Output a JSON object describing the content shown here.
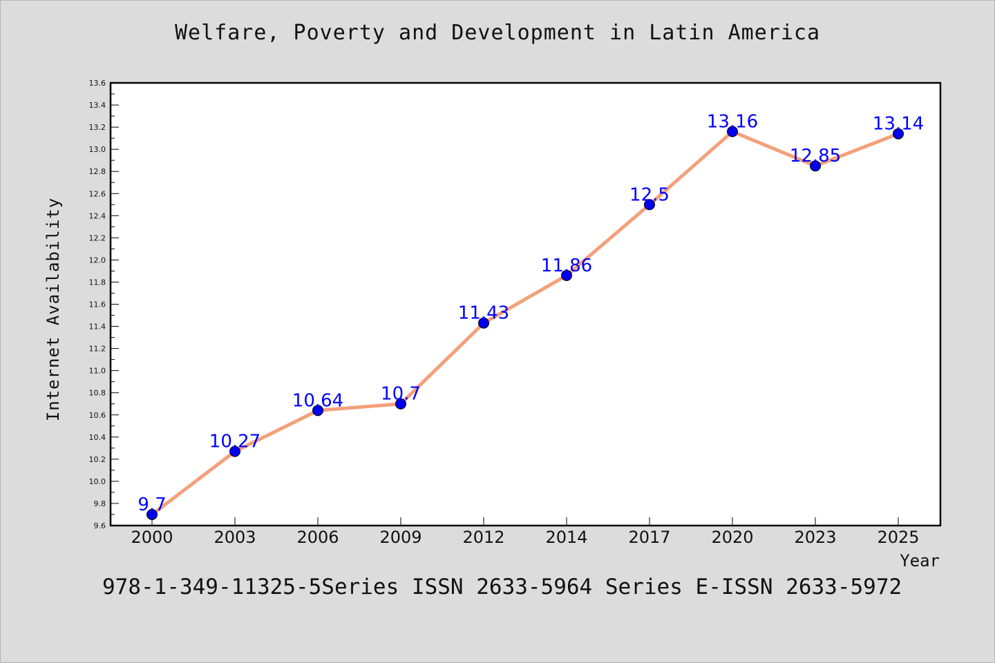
{
  "title": "Welfare, Poverty and Development in Latin America",
  "footnote": "978-1-349-11325-5Series ISSN 2633-5964 Series E-ISSN 2633-5972",
  "chart_data": {
    "type": "line",
    "title": "Welfare, Poverty and Development in Latin America",
    "xlabel": "Year",
    "ylabel": "Internet Availability",
    "categories": [
      "2000",
      "2003",
      "2006",
      "2009",
      "2012",
      "2014",
      "2017",
      "2020",
      "2023",
      "2025"
    ],
    "series": [
      {
        "values": [
          9.7,
          10.27,
          10.64,
          10.7,
          11.43,
          11.86,
          12.5,
          13.16,
          12.85,
          13.14
        ],
        "line_color": "#f4a07a",
        "marker_color": "#0000ee"
      }
    ],
    "data_labels": [
      "9.7",
      "10.27",
      "10.64",
      "10.7",
      "11.43",
      "11.86",
      "12.5",
      "13.16",
      "12.85",
      "13.14"
    ],
    "ylim": [
      9.6,
      13.6
    ],
    "yticks": [
      "9.6",
      "9.8",
      "10.0",
      "10.2",
      "10.4",
      "10.6",
      "10.8",
      "11.0",
      "11.2",
      "11.4",
      "11.6",
      "11.8",
      "12.0",
      "12.2",
      "12.4",
      "12.6",
      "12.8",
      "13.0",
      "13.2",
      "13.4",
      "13.6"
    ],
    "grid": false,
    "legend": "none",
    "colors": {
      "background": "#dcdcdc",
      "plot_background": "#ffffff",
      "line": "#f4a07a",
      "marker": "#0000ee",
      "data_label": "#0000ff"
    }
  }
}
